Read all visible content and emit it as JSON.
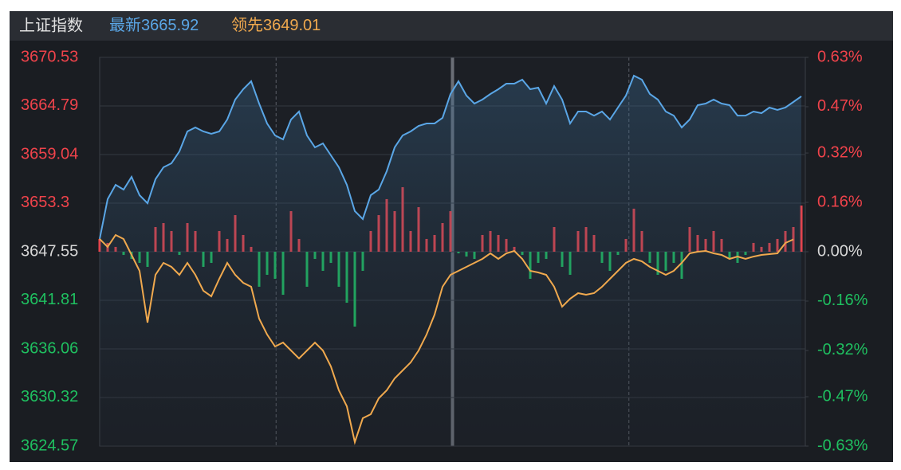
{
  "chart_data": {
    "type": "line",
    "title": "上证指数",
    "ylim": [
      3624.57,
      3670.53
    ],
    "yticks": [
      3670.53,
      3664.79,
      3659.04,
      3653.3,
      3647.55,
      3641.81,
      3636.06,
      3630.32,
      3624.57
    ],
    "y2lim": [
      -0.63,
      0.63
    ],
    "y2ticks": [
      {
        "value": 0.63,
        "label": "0.63%"
      },
      {
        "value": 0.47,
        "label": "0.47%"
      },
      {
        "value": 0.32,
        "label": "0.32%"
      },
      {
        "value": 0.16,
        "label": "0.16%"
      },
      {
        "value": 0,
        "label": "0.00%"
      },
      {
        "value": -0.16,
        "label": "-0.16%"
      },
      {
        "value": -0.32,
        "label": "-0.32%"
      },
      {
        "value": -0.47,
        "label": "-0.47%"
      },
      {
        "value": -0.63,
        "label": "-0.63%"
      }
    ],
    "grid": true,
    "up_color": "#f0434b",
    "down_color": "#1fc060",
    "series": [
      {
        "name": "最新",
        "color": "#5aa6e6",
        "values": [
          3649.06,
          3653.77,
          3655.46,
          3654.9,
          3656.4,
          3654.24,
          3653.29,
          3656.12,
          3657.53,
          3658.0,
          3659.42,
          3661.77,
          3662.24,
          3661.77,
          3661.49,
          3661.77,
          3663.18,
          3665.54,
          3666.76,
          3667.7,
          3665.07,
          3662.71,
          3661.3,
          3660.83,
          3663.18,
          3664.13,
          3661.3,
          3659.89,
          3660.36,
          3658.95,
          3657.53,
          3655.46,
          3652.35,
          3651.41,
          3654.24,
          3654.9,
          3657.06,
          3659.89,
          3661.3,
          3661.77,
          3662.43,
          3662.71,
          3662.71,
          3663.37,
          3666.2,
          3667.7,
          3666.01,
          3665.07,
          3665.54,
          3666.2,
          3666.76,
          3667.42,
          3667.42,
          3667.89,
          3666.76,
          3666.95,
          3665.07,
          3667.14,
          3665.54,
          3662.71,
          3664.13,
          3664.13,
          3663.65,
          3664.13,
          3663.18,
          3664.6,
          3666.01,
          3668.36,
          3667.89,
          3666.2,
          3665.54,
          3664.13,
          3663.65,
          3662.24,
          3663.18,
          3664.88,
          3665.07,
          3665.54,
          3665.07,
          3664.88,
          3663.65,
          3663.65,
          3664.13,
          3663.94,
          3664.6,
          3664.31,
          3664.6,
          3665.26,
          3665.92
        ]
      },
      {
        "name": "领先",
        "color": "#f0a94e",
        "values": [
          3649.06,
          3648.12,
          3649.53,
          3649.06,
          3647.17,
          3645.29,
          3639.17,
          3644.82,
          3646.23,
          3645.76,
          3644.82,
          3646.23,
          3644.82,
          3642.94,
          3642.28,
          3644.35,
          3646.23,
          3644.82,
          3643.88,
          3643.41,
          3639.64,
          3637.76,
          3636.34,
          3636.81,
          3635.87,
          3634.93,
          3635.87,
          3636.81,
          3635.87,
          3633.99,
          3631.16,
          3629.28,
          3625.04,
          3627.87,
          3628.34,
          3630.22,
          3631.16,
          3632.58,
          3633.52,
          3634.46,
          3635.87,
          3637.76,
          3640.11,
          3643.41,
          3644.82,
          3645.29,
          3645.76,
          3646.23,
          3646.7,
          3647.36,
          3646.7,
          3647.36,
          3647.64,
          3646.7,
          3645.29,
          3645.1,
          3644.82,
          3643.41,
          3641.05,
          3641.99,
          3642.65,
          3642.46,
          3642.65,
          3643.41,
          3644.35,
          3645.29,
          3646.23,
          3646.7,
          3646.42,
          3645.76,
          3645.29,
          3644.82,
          3645.29,
          3646.23,
          3647.36,
          3647.55,
          3647.64,
          3647.36,
          3647.17,
          3646.7,
          3646.98,
          3646.7,
          3646.98,
          3647.17,
          3647.27,
          3647.36,
          3648.59,
          3649.01
        ]
      },
      {
        "type": "bar",
        "values": [
          3649.06,
          3648.59,
          3648.12,
          3647.17,
          3646.7,
          3646.23,
          3645.76,
          3650.47,
          3650.94,
          3650.0,
          3647.17,
          3650.94,
          3650.0,
          3645.76,
          3646.23,
          3650.0,
          3649.06,
          3651.88,
          3649.53,
          3648.12,
          3643.41,
          3644.82,
          3644.35,
          3642.46,
          3652.35,
          3649.06,
          3643.41,
          3646.7,
          3645.29,
          3646.23,
          3643.41,
          3641.52,
          3638.7,
          3645.29,
          3650.0,
          3651.88,
          3653.77,
          3652.35,
          3655.18,
          3650.0,
          3652.82,
          3649.06,
          3649.53,
          3650.94,
          3652.35,
          3647.36,
          3646.98,
          3646.7,
          3649.53,
          3650.0,
          3649.53,
          3649.06,
          3648.12,
          3647.17,
          3644.35,
          3646.23,
          3646.7,
          3650.47,
          3645.76,
          3644.82,
          3650.0,
          3650.47,
          3649.53,
          3646.23,
          3645.29,
          3647.17,
          3649.06,
          3652.64,
          3650.0,
          3646.23,
          3644.82,
          3645.29,
          3646.23,
          3644.35,
          3650.47,
          3649.53,
          3649.06,
          3650.0,
          3649.06,
          3646.7,
          3646.23,
          3647.17,
          3648.59,
          3648.12,
          3648.59,
          3649.06,
          3650.0,
          3650.47,
          3653.01
        ]
      }
    ]
  }
}
